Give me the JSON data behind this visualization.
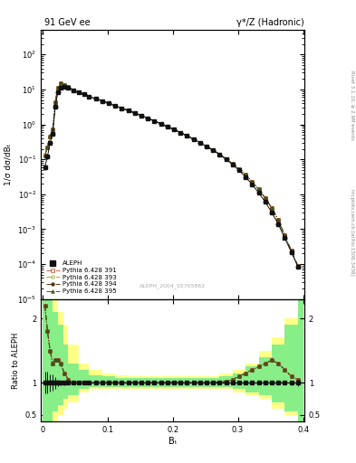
{
  "title_left": "91 GeV ee",
  "title_right": "γ*/Z (Hadronic)",
  "ylabel_main": "1/σ dσ/dBₜ",
  "ylabel_ratio": "Ratio to ALEPH",
  "xlabel": "Bₜ",
  "right_label_main": "Rivet 3.1.10, ≥ 2.9M events",
  "right_label_arxiv": "mcplots.cern.ch [arXiv:1306.3436]",
  "watermark": "ALEPH_2004_S5765862",
  "ylim_main": [
    1e-05,
    500
  ],
  "ylim_ratio": [
    0.4,
    2.3
  ],
  "aleph_x": [
    0.004,
    0.008,
    0.012,
    0.016,
    0.02,
    0.024,
    0.028,
    0.034,
    0.04,
    0.048,
    0.056,
    0.064,
    0.072,
    0.082,
    0.092,
    0.102,
    0.112,
    0.122,
    0.132,
    0.142,
    0.152,
    0.162,
    0.172,
    0.182,
    0.192,
    0.202,
    0.212,
    0.222,
    0.232,
    0.242,
    0.252,
    0.262,
    0.272,
    0.282,
    0.292,
    0.302,
    0.312,
    0.322,
    0.332,
    0.342,
    0.352,
    0.362,
    0.372,
    0.382,
    0.392
  ],
  "aleph_y": [
    0.06,
    0.12,
    0.3,
    0.55,
    3.2,
    8.5,
    11.5,
    12.0,
    11.0,
    9.5,
    8.2,
    7.2,
    6.3,
    5.4,
    4.7,
    4.0,
    3.4,
    2.9,
    2.5,
    2.1,
    1.78,
    1.5,
    1.25,
    1.04,
    0.86,
    0.71,
    0.58,
    0.47,
    0.38,
    0.3,
    0.235,
    0.182,
    0.138,
    0.1,
    0.071,
    0.048,
    0.031,
    0.019,
    0.011,
    0.006,
    0.003,
    0.0014,
    0.00055,
    0.00022,
    8.5e-05
  ],
  "aleph_yerr_lo": [
    0.01,
    0.02,
    0.04,
    0.07,
    0.3,
    0.4,
    0.4,
    0.4,
    0.3,
    0.2,
    0.15,
    0.12,
    0.1,
    0.08,
    0.07,
    0.06,
    0.05,
    0.04,
    0.035,
    0.03,
    0.025,
    0.022,
    0.018,
    0.015,
    0.012,
    0.01,
    0.009,
    0.007,
    0.006,
    0.005,
    0.004,
    0.003,
    0.0025,
    0.002,
    0.0015,
    0.001,
    0.0007,
    0.0004,
    0.0003,
    0.00015,
    8e-05,
    4e-05,
    1.5e-05,
    8e-06,
    4e-06
  ],
  "aleph_xerr": 0.004,
  "mc_391_ratio": [
    2.2,
    1.8,
    1.5,
    1.3,
    1.35,
    1.35,
    1.3,
    1.15,
    1.05,
    1.0,
    1.0,
    1.0,
    1.0,
    1.0,
    1.0,
    1.0,
    1.0,
    1.0,
    1.0,
    1.0,
    1.0,
    1.0,
    1.0,
    1.0,
    1.0,
    1.0,
    1.0,
    1.0,
    1.0,
    1.0,
    1.0,
    1.0,
    1.01,
    1.02,
    1.05,
    1.1,
    1.15,
    1.2,
    1.25,
    1.3,
    1.35,
    1.3,
    1.2,
    1.1,
    1.05
  ],
  "mc_393_ratio": [
    2.2,
    1.8,
    1.5,
    1.3,
    1.35,
    1.35,
    1.3,
    1.15,
    1.05,
    1.0,
    1.0,
    1.0,
    1.0,
    1.0,
    1.0,
    1.0,
    1.0,
    1.0,
    1.0,
    1.0,
    1.0,
    1.0,
    1.0,
    1.0,
    1.0,
    1.0,
    1.0,
    1.0,
    1.0,
    1.0,
    1.0,
    1.0,
    1.01,
    1.02,
    1.05,
    1.1,
    1.15,
    1.2,
    1.25,
    1.3,
    1.35,
    1.3,
    1.2,
    1.1,
    1.05
  ],
  "mc_394_ratio": [
    2.2,
    1.8,
    1.5,
    1.3,
    1.35,
    1.35,
    1.3,
    1.15,
    1.05,
    1.0,
    1.0,
    1.0,
    1.0,
    1.0,
    1.0,
    1.0,
    1.0,
    1.0,
    1.0,
    1.0,
    1.0,
    1.0,
    1.0,
    1.0,
    1.0,
    1.0,
    1.0,
    1.0,
    1.0,
    1.0,
    1.0,
    1.0,
    1.01,
    1.02,
    1.05,
    1.1,
    1.15,
    1.2,
    1.25,
    1.3,
    1.35,
    1.3,
    1.2,
    1.1,
    1.05
  ],
  "mc_395_ratio": [
    2.2,
    1.8,
    1.5,
    1.3,
    1.35,
    1.35,
    1.3,
    1.15,
    1.05,
    1.0,
    1.0,
    1.0,
    1.0,
    1.0,
    1.0,
    1.0,
    1.0,
    1.0,
    1.0,
    1.0,
    1.0,
    1.0,
    1.0,
    1.0,
    1.0,
    1.0,
    1.0,
    1.0,
    1.0,
    1.0,
    1.0,
    1.0,
    1.01,
    1.02,
    1.05,
    1.1,
    1.15,
    1.2,
    1.25,
    1.3,
    1.35,
    1.3,
    1.2,
    1.1,
    1.05
  ],
  "band_x_edges": [
    0.0,
    0.008,
    0.016,
    0.024,
    0.032,
    0.04,
    0.056,
    0.072,
    0.092,
    0.112,
    0.132,
    0.152,
    0.172,
    0.192,
    0.212,
    0.232,
    0.252,
    0.272,
    0.292,
    0.312,
    0.332,
    0.352,
    0.372,
    0.392,
    0.4
  ],
  "band_yellow_lo": [
    0.4,
    0.4,
    0.4,
    0.5,
    0.6,
    0.7,
    0.85,
    0.9,
    0.9,
    0.9,
    0.9,
    0.9,
    0.9,
    0.9,
    0.9,
    0.9,
    0.9,
    0.9,
    0.85,
    0.8,
    0.75,
    0.6,
    0.5,
    0.4
  ],
  "band_yellow_hi": [
    2.3,
    2.3,
    2.3,
    2.1,
    1.9,
    1.6,
    1.3,
    1.2,
    1.15,
    1.12,
    1.1,
    1.1,
    1.1,
    1.1,
    1.1,
    1.1,
    1.1,
    1.15,
    1.2,
    1.3,
    1.5,
    1.7,
    2.0,
    2.3
  ],
  "band_green_lo": [
    0.4,
    0.4,
    0.55,
    0.65,
    0.75,
    0.8,
    0.9,
    0.93,
    0.93,
    0.93,
    0.93,
    0.93,
    0.93,
    0.93,
    0.93,
    0.93,
    0.93,
    0.93,
    0.9,
    0.85,
    0.8,
    0.7,
    0.55,
    0.4
  ],
  "band_green_hi": [
    2.3,
    2.3,
    2.1,
    1.9,
    1.6,
    1.3,
    1.2,
    1.12,
    1.1,
    1.08,
    1.07,
    1.07,
    1.07,
    1.07,
    1.07,
    1.07,
    1.08,
    1.1,
    1.15,
    1.25,
    1.4,
    1.6,
    1.9,
    2.3
  ],
  "mc_391": {
    "label": "Pythia 6.428 391",
    "color": "#bb6644",
    "linestyle": "-.",
    "marker": "s",
    "markersize": 2.5,
    "fillstyle": "none"
  },
  "mc_393": {
    "label": "Pythia 6.428 393",
    "color": "#aaaa33",
    "linestyle": "-.",
    "marker": "o",
    "markersize": 2.5,
    "fillstyle": "none"
  },
  "mc_394": {
    "label": "Pythia 6.428 394",
    "color": "#553311",
    "linestyle": "-.",
    "marker": "o",
    "markersize": 2.5,
    "fillstyle": "full"
  },
  "mc_395": {
    "label": "Pythia 6.428 395",
    "color": "#445522",
    "linestyle": "-.",
    "marker": "^",
    "markersize": 2.5,
    "fillstyle": "full"
  },
  "aleph_color": "#111111",
  "band_yellow": "#ffff88",
  "band_green": "#88ee88",
  "background_color": "#ffffff"
}
